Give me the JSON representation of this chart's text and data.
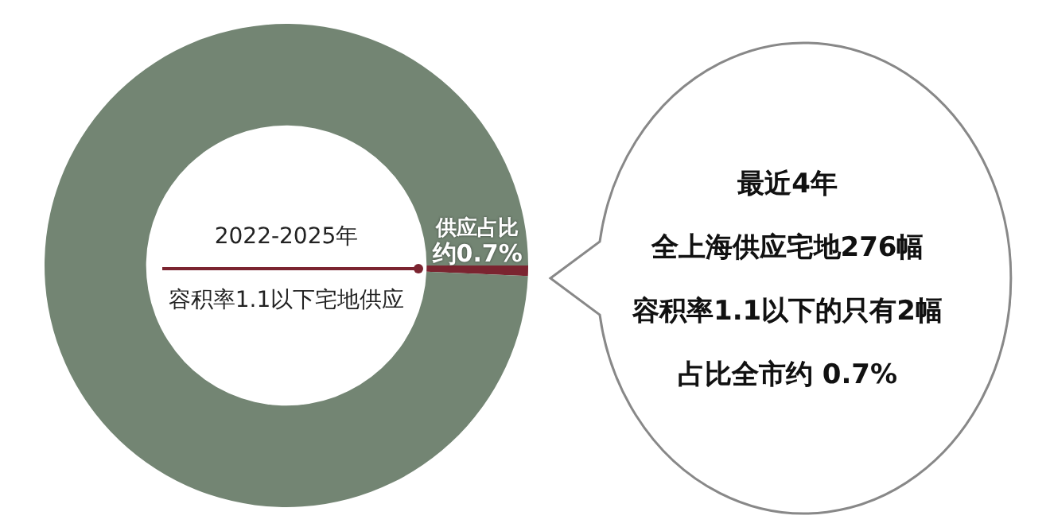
{
  "chart_data": {
    "type": "donut",
    "categories": [
      "供应占比",
      null
    ],
    "values": [
      0.7,
      99.3
    ],
    "colors": [
      "#7b2430",
      "#738573"
    ],
    "value_labels": [
      "约0.7%",
      null
    ],
    "legend": false,
    "annotations": [
      "2022-2025年",
      "容积率1.1以下宅地供应",
      "最近4年",
      "全上海供应宅地276幅",
      "容积率1.1以下的只有2幅",
      "占比全市约 0.7%"
    ]
  }
}
